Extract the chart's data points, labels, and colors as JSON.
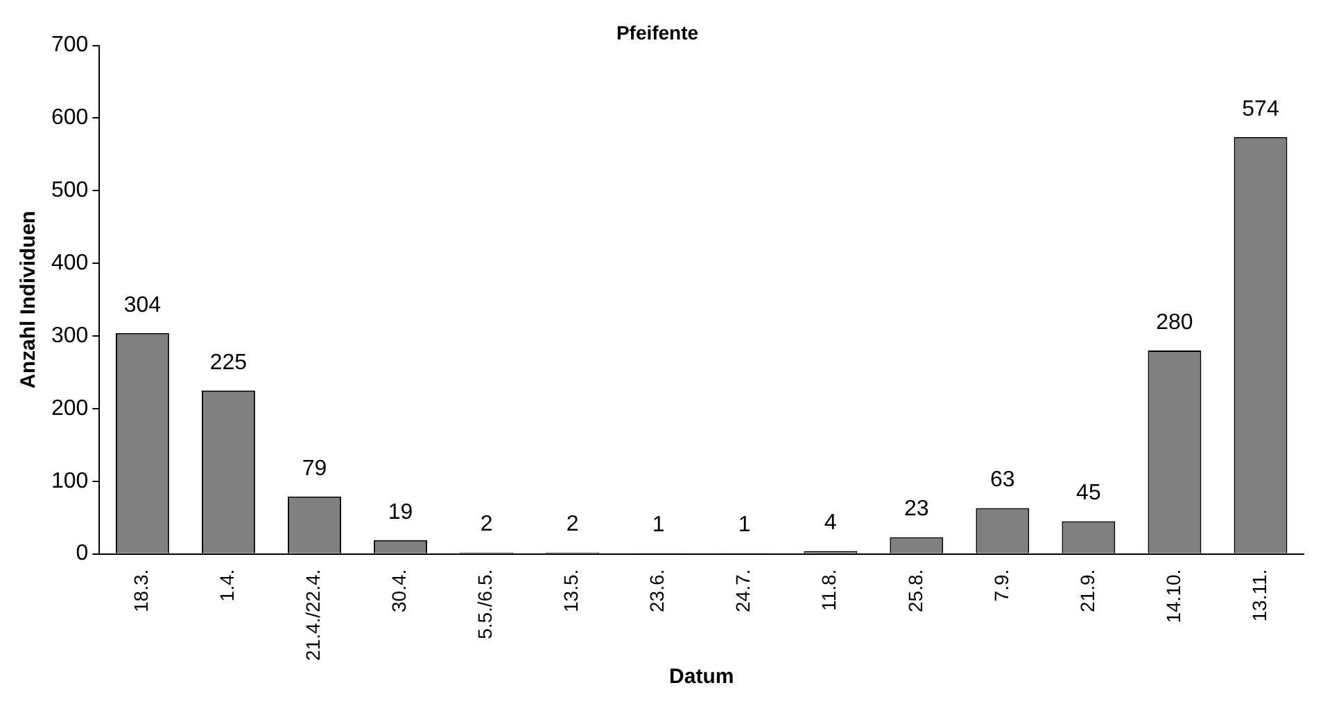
{
  "chart_data": {
    "type": "bar",
    "title": "Pfeifente",
    "xlabel": "Datum",
    "ylabel": "Anzahl Individuen",
    "categories": [
      "18.3.",
      "1.4.",
      "21.4./22.4.",
      "30.4.",
      "5.5./6.5.",
      "13.5.",
      "23.6.",
      "24.7.",
      "11.8.",
      "25.8.",
      "7.9.",
      "21.9.",
      "14.10.",
      "13.11."
    ],
    "values": [
      304,
      225,
      79,
      19,
      2,
      2,
      1,
      1,
      4,
      23,
      63,
      45,
      280,
      574
    ],
    "color": "#808080",
    "ylim": [
      0,
      700
    ],
    "yticks": [
      0,
      100,
      200,
      300,
      400,
      500,
      600,
      700
    ],
    "data_labels": true,
    "grid": false,
    "legend": false
  }
}
